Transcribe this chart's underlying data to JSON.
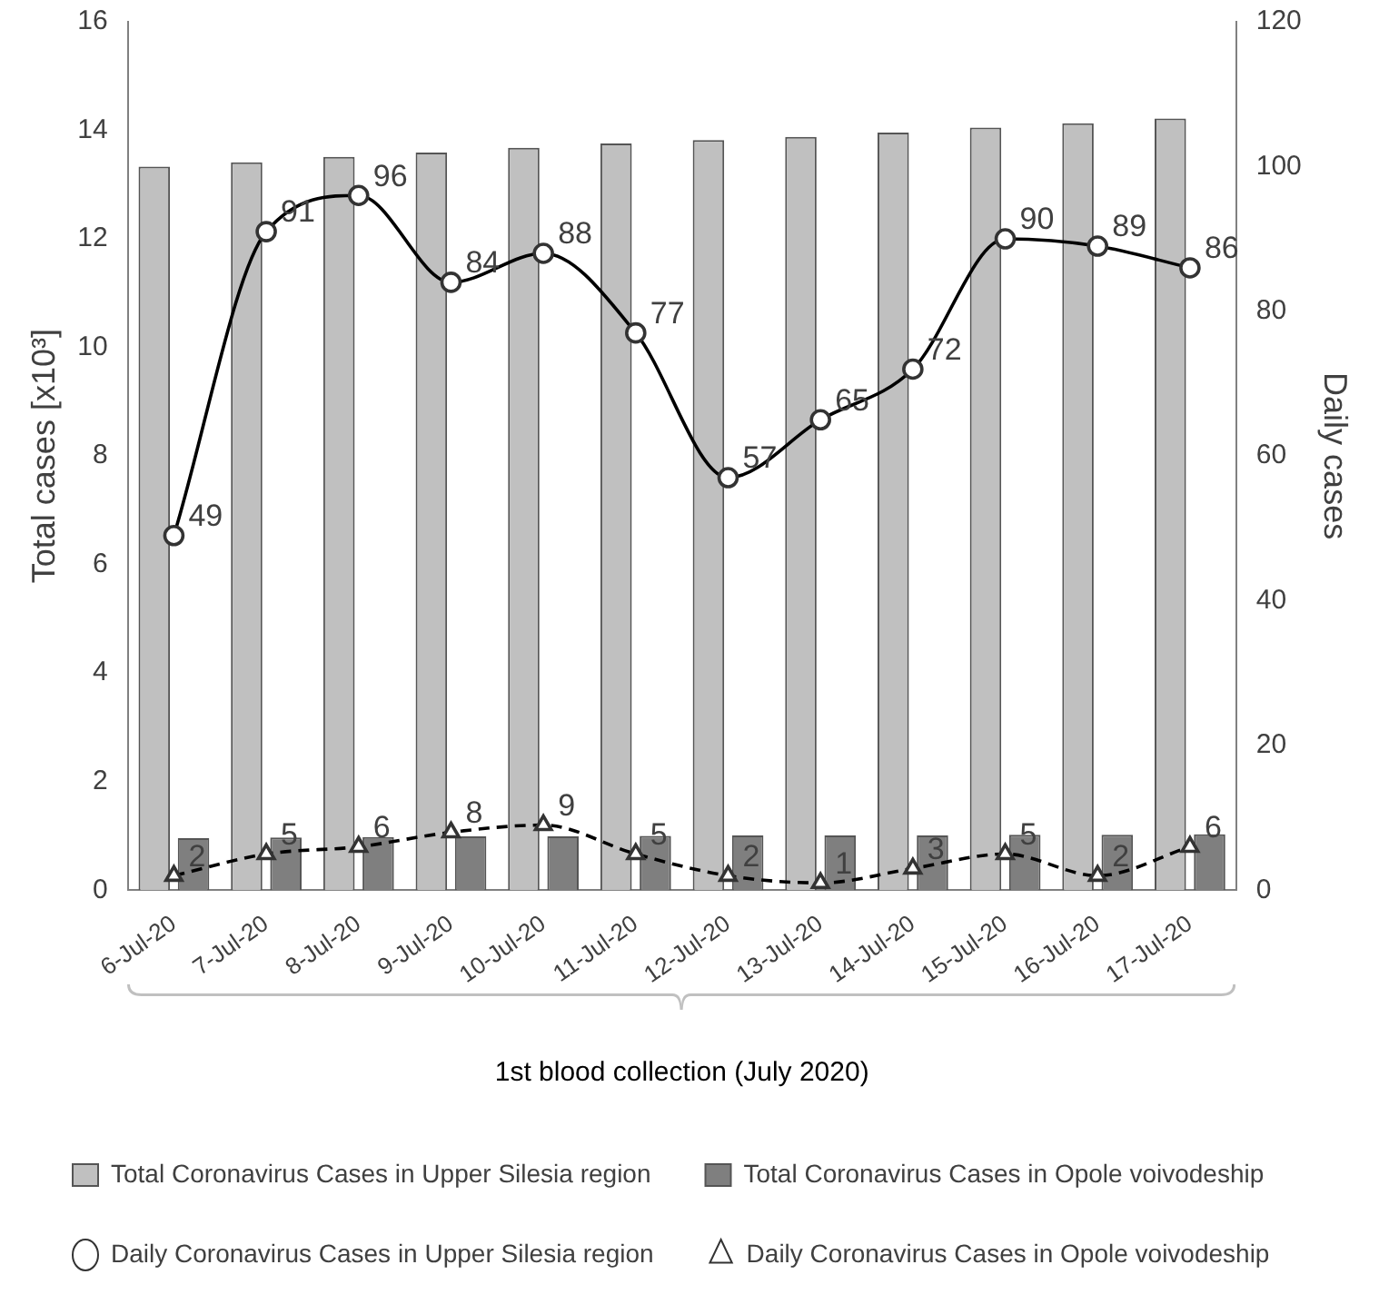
{
  "chart_data": {
    "type": "bar",
    "xlabel": "1st blood collection (July 2020)",
    "ylabel": "Total cases [x10³]",
    "y2label": "Daily cases",
    "categories": [
      "6-Jul-20",
      "7-Jul-20",
      "8-Jul-20",
      "9-Jul-20",
      "10-Jul-20",
      "11-Jul-20",
      "12-Jul-20",
      "13-Jul-20",
      "14-Jul-20",
      "15-Jul-20",
      "16-Jul-20",
      "17-Jul-20"
    ],
    "series": [
      {
        "name": "Total Coronavirus Cases in Upper Silesia region",
        "color": "#c0c0c0",
        "values": [
          13.33,
          13.41,
          13.51,
          13.59,
          13.68,
          13.76,
          13.82,
          13.88,
          13.96,
          14.05,
          14.13,
          14.22
        ]
      },
      {
        "name": "Total Coronavirus Cases in Opole voivodeship",
        "color": "#7f7f7f",
        "values": [
          0.96,
          0.97,
          0.98,
          0.99,
          0.99,
          1.0,
          1.01,
          1.01,
          1.01,
          1.02,
          1.02,
          1.03
        ]
      },
      {
        "name": "Daily Coronavirus Cases in Upper Silesia region",
        "type": "line",
        "axis": "y2",
        "color": "#000000",
        "marker": "circle",
        "line_style": "solid",
        "values": [
          49,
          91,
          96,
          84,
          88,
          77,
          57,
          65,
          72,
          90,
          89,
          86
        ],
        "value_labels": [
          "49",
          "91",
          "96",
          "84",
          "88",
          "77",
          "57",
          "65",
          "72",
          "90",
          "89",
          "86"
        ]
      },
      {
        "name": "Daily Coronavirus Cases in Opole voivodeship",
        "type": "line",
        "axis": "y2",
        "color": "#000000",
        "marker": "triangle",
        "line_style": "dashed",
        "values": [
          2,
          5,
          6,
          8,
          9,
          5,
          2,
          1,
          3,
          5,
          2,
          6
        ],
        "value_labels": [
          "2",
          "5",
          "6",
          "8",
          "9",
          "5",
          "2",
          "1",
          "3",
          "5",
          "2",
          "6"
        ]
      }
    ],
    "ylim": [
      0,
      16
    ],
    "yticks": [
      0,
      2,
      4,
      6,
      8,
      10,
      12,
      14,
      16
    ],
    "y2lim": [
      0,
      120
    ],
    "y2ticks": [
      0,
      20,
      40,
      60,
      80,
      100,
      120
    ],
    "grid": false,
    "legend": "bottom"
  }
}
